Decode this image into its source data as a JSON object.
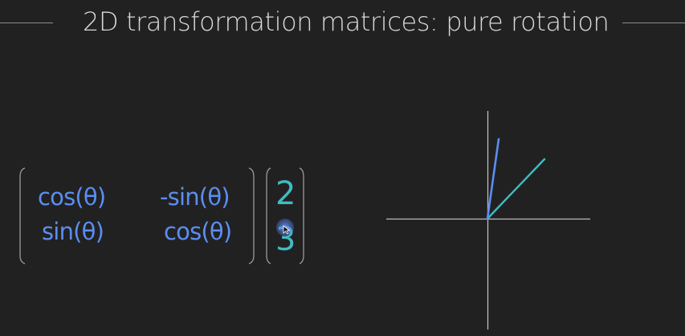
{
  "slide": {
    "title": "2D transformation matrices: pure rotation"
  },
  "matrix": {
    "row1": [
      "cos(θ)",
      "-sin(θ)"
    ],
    "row2": [
      "sin(θ)",
      "cos(θ)"
    ]
  },
  "vector": [
    "2",
    "3"
  ],
  "colors": {
    "background": "#222122",
    "matrix_text": "#5b8ef0",
    "vector_text": "#3fbcc2",
    "axes": "#bcbcbc",
    "rotated_vector": "#5b8ef0",
    "original_vector": "#3fbcc2"
  },
  "icons": {
    "cursor": "mouse-pointer-icon"
  }
}
